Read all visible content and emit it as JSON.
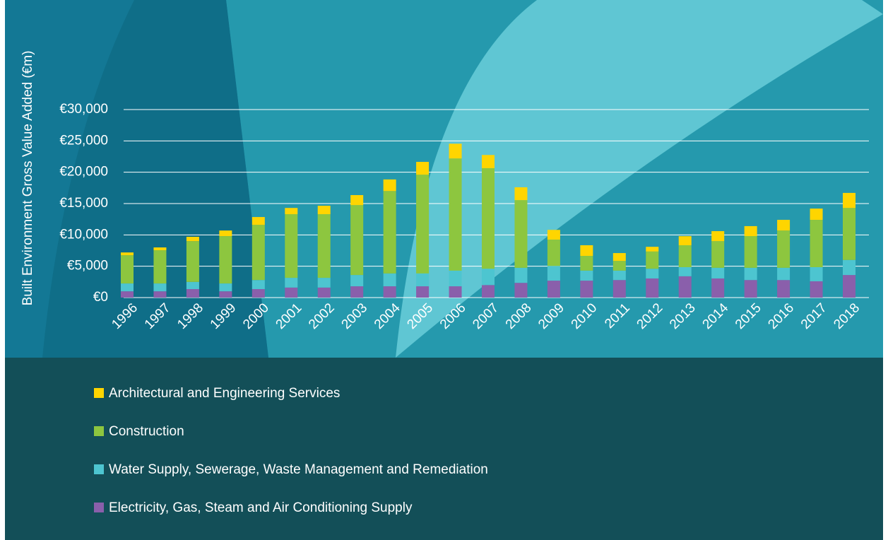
{
  "chart_data": {
    "type": "stacked-bar",
    "y_label": "Built Environment Gross Value Added (€m)",
    "categories": [
      "1996",
      "1997",
      "1998",
      "1999",
      "2000",
      "2001",
      "2002",
      "2003",
      "2004",
      "2005",
      "2006",
      "2007",
      "2008",
      "2009",
      "2010",
      "2011",
      "2012",
      "2013",
      "2014",
      "2015",
      "2016",
      "2017",
      "2018"
    ],
    "series": [
      {
        "name": "Electricity, Gas, Steam and Air Conditioning Supply",
        "color": "#8a5fab",
        "values": [
          1000,
          1000,
          1350,
          1000,
          1350,
          1600,
          1600,
          1800,
          1800,
          1800,
          1800,
          2000,
          2350,
          2700,
          2700,
          2800,
          3050,
          3400,
          3050,
          2800,
          2800,
          2600,
          3600
        ]
      },
      {
        "name": "Water Supply, Sewerage, Waste Management and Remediation",
        "color": "#4dc5d0",
        "values": [
          1250,
          1250,
          1150,
          1250,
          1450,
          1550,
          1550,
          1800,
          2050,
          2050,
          2500,
          2600,
          2400,
          2350,
          1600,
          1500,
          1550,
          1450,
          1700,
          1950,
          1950,
          2250,
          2400
        ]
      },
      {
        "name": "Construction",
        "color": "#8dc63f",
        "values": [
          4500,
          5300,
          6500,
          7550,
          8800,
          10150,
          10150,
          11150,
          13150,
          15750,
          17900,
          16050,
          10800,
          4200,
          2350,
          1550,
          2750,
          3500,
          4250,
          5050,
          5950,
          7550,
          8300
        ]
      },
      {
        "name": "Architectural and Engineering Services",
        "color": "#ffd500",
        "values": [
          450,
          450,
          700,
          900,
          1250,
          1000,
          1350,
          1600,
          1850,
          2050,
          2350,
          2100,
          2050,
          1550,
          1700,
          1250,
          750,
          1450,
          1600,
          1600,
          1700,
          1800,
          2400
        ]
      }
    ],
    "ylim": [
      0,
      30000
    ],
    "yticks": [
      {
        "value": 0,
        "label": "€0"
      },
      {
        "value": 5000,
        "label": "€5,000"
      },
      {
        "value": 10000,
        "label": "€10,000"
      },
      {
        "value": 15000,
        "label": "€15,000"
      },
      {
        "value": 20000,
        "label": "€20,000"
      },
      {
        "value": 25000,
        "label": "€25,000"
      },
      {
        "value": 30000,
        "label": "€30,000"
      }
    ],
    "grid": true
  }
}
